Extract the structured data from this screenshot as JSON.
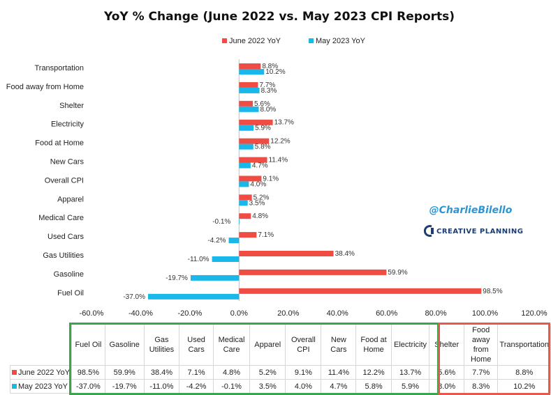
{
  "colors": {
    "june": "#ef4d44",
    "may": "#1ab8ea",
    "green_box": "#3aa64b",
    "red_box": "#e8584b",
    "handle": "#2b95d6",
    "brand": "#1b3d73"
  },
  "chart_data": {
    "type": "bar",
    "orientation": "horizontal",
    "title": "YoY % Change (June 2022 vs. May 2023 CPI Reports)",
    "categories": [
      "Transportation",
      "Food away from Home",
      "Shelter",
      "Electricity",
      "Food at Home",
      "New Cars",
      "Overall CPI",
      "Apparel",
      "Medical Care",
      "Used Cars",
      "Gas Utilities",
      "Gasoline",
      "Fuel Oil"
    ],
    "series": [
      {
        "name": "June 2022 YoY",
        "values": [
          8.8,
          7.7,
          5.6,
          13.7,
          12.2,
          11.4,
          9.1,
          5.2,
          4.8,
          7.1,
          38.4,
          59.9,
          98.5
        ]
      },
      {
        "name": "May 2023 YoY",
        "values": [
          10.2,
          8.3,
          8.0,
          5.9,
          5.8,
          4.7,
          4.0,
          3.5,
          -0.1,
          -4.2,
          -11.0,
          -19.7,
          -37.0
        ]
      }
    ],
    "xlim": [
      -60,
      120
    ],
    "xticks": [
      -60,
      -40,
      -20,
      0,
      20,
      40,
      60,
      80,
      100,
      120
    ],
    "tick_labels": [
      "-60.0%",
      "-40.0%",
      "-20.0%",
      "0.0%",
      "20.0%",
      "40.0%",
      "60.0%",
      "80.0%",
      "100.0%",
      "120.0%"
    ],
    "data_labels": [
      [
        "8.8%",
        "7.7%",
        "5.6%",
        "13.7%",
        "12.2%",
        "11.4%",
        "9.1%",
        "5.2%",
        "4.8%",
        "7.1%",
        "38.4%",
        "59.9%",
        "98.5%"
      ],
      [
        "10.2%",
        "8.3%",
        "8.0%",
        "5.9%",
        "5.8%",
        "4.7%",
        "4.0%",
        "3.5%",
        "-0.1%",
        "-4.2%",
        "-11.0%",
        "-19.7%",
        "-37.0%"
      ]
    ],
    "legend": [
      "June 2022 YoY",
      "May 2023 YoY"
    ],
    "legend_position": "top-center",
    "grid": false
  },
  "watermark": {
    "handle": "@CharlieBilello",
    "brand": "CREATIVE PLANNING"
  },
  "table": {
    "columns": [
      "Fuel Oil",
      "Gasoline",
      "Gas Utilities",
      "Used Cars",
      "Medical Care",
      "Apparel",
      "Overall CPI",
      "New Cars",
      "Food at Home",
      "Electricity",
      "Shelter",
      "Food away from Home",
      "Transportation"
    ],
    "rows": [
      {
        "label": "June 2022 YoY",
        "values": [
          "98.5%",
          "59.9%",
          "38.4%",
          "7.1%",
          "4.8%",
          "5.2%",
          "9.1%",
          "11.4%",
          "12.2%",
          "13.7%",
          "5.6%",
          "7.7%",
          "8.8%"
        ]
      },
      {
        "label": "May 2023 YoY",
        "values": [
          "-37.0%",
          "-19.7%",
          "-11.0%",
          "-4.2%",
          "-0.1%",
          "3.5%",
          "4.0%",
          "4.7%",
          "5.8%",
          "5.9%",
          "8.0%",
          "8.3%",
          "10.2%"
        ]
      }
    ]
  }
}
